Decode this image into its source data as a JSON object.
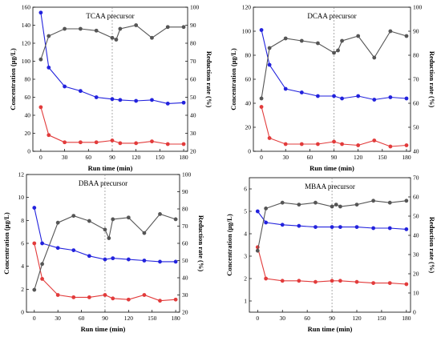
{
  "colors": {
    "conc_precursor": "#2222dd",
    "conc_product": "#e23b3b",
    "reduction": "#555555",
    "marker_line": "#888888"
  },
  "chart_data": [
    {
      "type": "line",
      "title": "TCAA precursor",
      "xlabel": "Run time (min)",
      "ylabel": "Concentration (µg/L)",
      "y2label": "Reduction rate (%)",
      "xlim": [
        -10,
        185
      ],
      "xticks": [
        0,
        30,
        60,
        90,
        120,
        150,
        180
      ],
      "ylim": [
        0,
        160
      ],
      "yticks": [
        0,
        20,
        40,
        60,
        80,
        100,
        120,
        140,
        160
      ],
      "y2lim": [
        20,
        100
      ],
      "y2ticks": [
        20,
        30,
        40,
        50,
        60,
        70,
        80,
        90,
        100
      ],
      "vline_x": 90,
      "series": [
        {
          "axis": "left",
          "color_key": "conc_precursor",
          "x": [
            0,
            10,
            30,
            50,
            70,
            90,
            100,
            120,
            140,
            160,
            180
          ],
          "y": [
            154,
            93,
            72,
            67,
            60,
            58,
            57,
            56,
            57,
            53,
            54
          ]
        },
        {
          "axis": "left",
          "color_key": "conc_product",
          "x": [
            0,
            10,
            30,
            50,
            70,
            90,
            100,
            120,
            140,
            160,
            180
          ],
          "y": [
            49,
            18,
            10,
            10,
            10,
            12,
            9,
            9,
            11,
            8,
            8
          ]
        },
        {
          "axis": "right",
          "color_key": "reduction",
          "x": [
            0,
            10,
            30,
            50,
            70,
            90,
            95,
            100,
            120,
            140,
            160,
            180
          ],
          "y": [
            71,
            84,
            88,
            88,
            87,
            83,
            82,
            88,
            90,
            83,
            89,
            89
          ]
        }
      ]
    },
    {
      "type": "line",
      "title": "DCAA precursor",
      "xlabel": "Run time (min)",
      "ylabel": "Concentration (µg/L)",
      "y2label": "Reduction rate (%)",
      "xlim": [
        -10,
        185
      ],
      "xticks": [
        0,
        30,
        60,
        90,
        120,
        150,
        180
      ],
      "ylim": [
        0,
        120
      ],
      "yticks": [
        0,
        20,
        40,
        60,
        80,
        100,
        120
      ],
      "y2lim": [
        40,
        100
      ],
      "y2ticks": [
        40,
        50,
        60,
        70,
        80,
        90,
        100
      ],
      "vline_x": 90,
      "series": [
        {
          "axis": "left",
          "color_key": "conc_precursor",
          "x": [
            0,
            10,
            30,
            50,
            70,
            90,
            100,
            120,
            140,
            160,
            180
          ],
          "y": [
            101,
            72,
            52,
            49,
            46,
            46,
            44,
            46,
            43,
            45,
            44
          ]
        },
        {
          "axis": "left",
          "color_key": "conc_product",
          "x": [
            0,
            10,
            30,
            50,
            70,
            90,
            100,
            120,
            140,
            160,
            180
          ],
          "y": [
            37,
            11,
            6,
            6,
            6,
            8,
            6,
            5,
            9,
            4,
            5
          ]
        },
        {
          "axis": "right",
          "color_key": "reduction",
          "x": [
            0,
            10,
            30,
            50,
            70,
            90,
            95,
            100,
            120,
            140,
            160,
            180
          ],
          "y": [
            62,
            83,
            87,
            86,
            85,
            81,
            82,
            86,
            88,
            79,
            90,
            88
          ]
        }
      ]
    },
    {
      "type": "line",
      "title": "DBAA precursor",
      "xlabel": "Run time (min)",
      "ylabel": "Concentration (µg/L)",
      "y2label": "Reduction rate (%)",
      "xlim": [
        -10,
        185
      ],
      "xticks": [
        0,
        30,
        60,
        90,
        120,
        150,
        180
      ],
      "ylim": [
        0,
        12
      ],
      "yticks": [
        0,
        2,
        4,
        6,
        8,
        10,
        12
      ],
      "y2lim": [
        20,
        100
      ],
      "y2ticks": [
        20,
        30,
        40,
        50,
        60,
        70,
        80,
        90,
        100
      ],
      "vline_x": 90,
      "series": [
        {
          "axis": "left",
          "color_key": "conc_precursor",
          "x": [
            0,
            10,
            30,
            50,
            70,
            90,
            100,
            120,
            140,
            160,
            180
          ],
          "y": [
            9.1,
            6.0,
            5.6,
            5.4,
            4.9,
            4.6,
            4.7,
            4.6,
            4.5,
            4.4,
            4.4
          ]
        },
        {
          "axis": "left",
          "color_key": "conc_product",
          "x": [
            0,
            10,
            30,
            50,
            70,
            90,
            100,
            120,
            140,
            160,
            180
          ],
          "y": [
            6.0,
            2.9,
            1.5,
            1.3,
            1.3,
            1.5,
            1.2,
            1.1,
            1.5,
            1.0,
            1.1
          ]
        },
        {
          "axis": "right",
          "color_key": "reduction",
          "x": [
            0,
            10,
            30,
            50,
            70,
            90,
            95,
            100,
            120,
            140,
            160,
            180
          ],
          "y": [
            33,
            48,
            72,
            76,
            73,
            68,
            63,
            74,
            75,
            66,
            77,
            74
          ]
        }
      ]
    },
    {
      "type": "line",
      "title": "MBAA precursor",
      "xlabel": "Run time (min)",
      "ylabel": "Concentration (µg/L)",
      "y2label": "Reduction rate (%)",
      "xlim": [
        -10,
        185
      ],
      "xticks": [
        0,
        30,
        60,
        90,
        120,
        150,
        180
      ],
      "ylim": [
        0.5,
        6.5
      ],
      "yticks": [
        1,
        2,
        3,
        4,
        5,
        6
      ],
      "y2lim": [
        0,
        70
      ],
      "y2ticks": [
        0,
        10,
        20,
        30,
        40,
        50,
        60,
        70
      ],
      "vline_x": 90,
      "series": [
        {
          "axis": "left",
          "color_key": "conc_precursor",
          "x": [
            0,
            10,
            30,
            50,
            70,
            90,
            100,
            120,
            140,
            160,
            180
          ],
          "y": [
            5.0,
            4.5,
            4.4,
            4.35,
            4.3,
            4.3,
            4.3,
            4.3,
            4.25,
            4.25,
            4.2
          ]
        },
        {
          "axis": "left",
          "color_key": "conc_product",
          "x": [
            0,
            10,
            30,
            50,
            70,
            90,
            100,
            120,
            140,
            160,
            180
          ],
          "y": [
            3.4,
            2.0,
            1.9,
            1.9,
            1.85,
            1.9,
            1.9,
            1.85,
            1.8,
            1.8,
            1.75
          ]
        },
        {
          "axis": "right",
          "color_key": "reduction",
          "x": [
            0,
            10,
            30,
            50,
            70,
            90,
            95,
            100,
            120,
            140,
            160,
            180
          ],
          "y": [
            32,
            54,
            57,
            56,
            57,
            55,
            56,
            55,
            56,
            58,
            57,
            58
          ]
        }
      ]
    }
  ]
}
